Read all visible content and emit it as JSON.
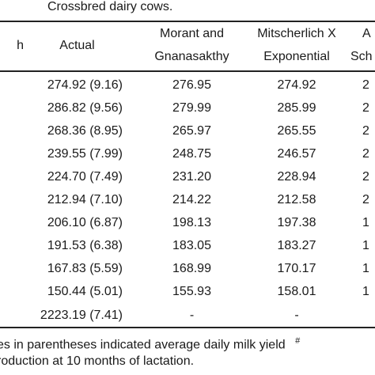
{
  "caption_top": "Crossbred dairy cows.",
  "headers": {
    "col0": "h",
    "actual": "Actual",
    "col2_line1": "Morant and",
    "col2_line2": "Gnanasakthy",
    "col3_line1": "Mitscherlich X",
    "col3_line2": "Exponential",
    "col4_line1": "A",
    "col4_line2": "Sch"
  },
  "rows": [
    {
      "actual": "274.92 (9.16)",
      "morant": "276.95",
      "mitscherlich": "274.92",
      "next": "2"
    },
    {
      "actual": "286.82 (9.56)",
      "morant": "279.99",
      "mitscherlich": "285.99",
      "next": "2"
    },
    {
      "actual": "268.36 (8.95)",
      "morant": "265.97",
      "mitscherlich": "265.55",
      "next": "2"
    },
    {
      "actual": "239.55 (7.99)",
      "morant": "248.75",
      "mitscherlich": "246.57",
      "next": "2"
    },
    {
      "actual": "224.70 (7.49)",
      "morant": "231.20",
      "mitscherlich": "228.94",
      "next": "2"
    },
    {
      "actual": "212.94 (7.10)",
      "morant": "214.22",
      "mitscherlich": "212.58",
      "next": "2"
    },
    {
      "actual": "206.10 (6.87)",
      "morant": "198.13",
      "mitscherlich": "197.38",
      "next": "1"
    },
    {
      "actual": "191.53 (6.38)",
      "morant": "183.05",
      "mitscherlich": "183.27",
      "next": "1"
    },
    {
      "actual": "167.83 (5.59)",
      "morant": "168.99",
      "mitscherlich": "170.17",
      "next": "1"
    },
    {
      "actual": "150.44 (5.01)",
      "morant": "155.93",
      "mitscherlich": "158.01",
      "next": "1"
    }
  ],
  "total": {
    "actual": "2223.19 (7.41)",
    "morant": "-",
    "mitscherlich": "-"
  },
  "footnote_line1": "es in parentheses indicated average daily milk yield",
  "footnote_mark": "#",
  "footnote_line2": "roduction at 10 months of lactation."
}
